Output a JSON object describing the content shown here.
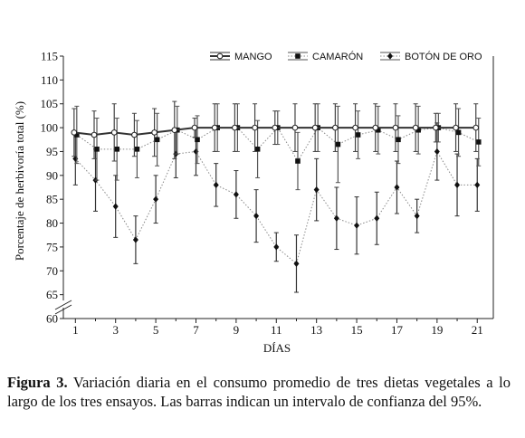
{
  "chart_data": {
    "type": "line",
    "xlabel": "DÍAS",
    "ylabel": "Porcentaje de herbivoría total (%)",
    "x": [
      1,
      2,
      3,
      4,
      5,
      6,
      7,
      8,
      9,
      10,
      11,
      12,
      13,
      14,
      15,
      16,
      17,
      18,
      19,
      20,
      21
    ],
    "x_ticks": [
      1,
      3,
      5,
      7,
      9,
      11,
      13,
      15,
      17,
      19,
      21
    ],
    "ylim": [
      60,
      115
    ],
    "y_ticks": [
      60,
      65,
      70,
      75,
      80,
      85,
      90,
      95,
      100,
      105,
      110,
      115
    ],
    "axis_break": true,
    "series": [
      {
        "name": "MANGO",
        "marker": "open-circle",
        "line": "solid",
        "values": [
          99,
          98.5,
          99,
          98.5,
          99,
          99.5,
          100,
          100,
          100,
          100,
          100,
          100,
          100,
          100,
          100,
          100,
          100,
          100,
          100,
          100,
          100
        ],
        "ci_half": [
          5,
          5,
          6,
          4.5,
          5,
          6,
          2,
          5,
          5,
          5,
          3.5,
          5,
          5,
          5,
          5,
          5,
          5,
          5,
          3,
          5,
          5
        ]
      },
      {
        "name": "CAMARÓN",
        "marker": "square",
        "line": "dotted",
        "values": [
          98.5,
          95.5,
          95.5,
          95.5,
          97.5,
          99.5,
          97.5,
          100,
          100,
          95.5,
          100,
          93,
          100,
          96.5,
          98.5,
          99.5,
          97.5,
          99.5,
          100,
          99,
          97
        ],
        "ci_half": [
          6,
          6.5,
          6.5,
          6,
          5.5,
          5,
          5,
          5,
          5,
          6,
          3.5,
          6,
          5,
          8,
          5,
          5,
          5,
          5,
          3,
          5,
          5
        ]
      },
      {
        "name": "BOTÓN DE ORO",
        "marker": "diamond",
        "line": "dotted",
        "values": [
          93.5,
          89,
          83.5,
          76.5,
          85,
          94.5,
          95,
          88,
          86,
          81.5,
          75,
          71.5,
          87,
          81,
          79.5,
          81,
          87.5,
          81.5,
          95,
          88,
          88
        ],
        "ci_half": [
          5.5,
          6.5,
          6.5,
          5,
          5,
          5,
          5,
          4.5,
          5,
          5.5,
          3,
          6,
          6.5,
          6.5,
          6,
          5.5,
          5.5,
          3.5,
          6,
          6.5,
          5.5
        ]
      }
    ]
  },
  "caption": {
    "label": "Figura 3.",
    "text": " Variación diaria en el consumo promedio de tres dietas vegetales a lo largo de los tres ensayos. Las barras indican un intervalo de confianza del 95%."
  }
}
